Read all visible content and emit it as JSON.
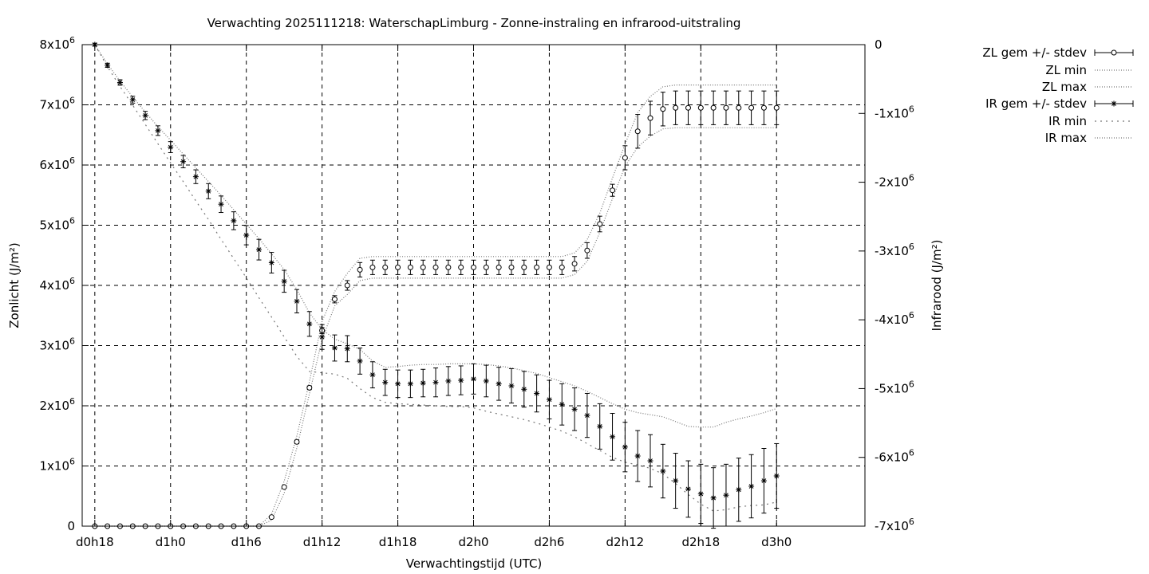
{
  "chart_data": {
    "type": "line",
    "title": "Verwachting 2025111218: WaterschapLimburg - Zonne-instraling en infrarood-uitstraling",
    "xlabel": "Verwachtingstijd (UTC)",
    "ylabel": "Zonlicht (J/m²)",
    "y2label": "Infrarood (J/m²)",
    "x_range_hours": [
      -1,
      61
    ],
    "ylim": [
      0,
      8000000
    ],
    "y2lim": [
      -7000000,
      0
    ],
    "grid": true,
    "legend_position": "top-right",
    "x_ticks": [
      {
        "label": "d0h18",
        "hours": 0
      },
      {
        "label": "d1h0",
        "hours": 6
      },
      {
        "label": "d1h6",
        "hours": 12
      },
      {
        "label": "d1h12",
        "hours": 18
      },
      {
        "label": "d1h18",
        "hours": 24
      },
      {
        "label": "d2h0",
        "hours": 30
      },
      {
        "label": "d2h6",
        "hours": 36
      },
      {
        "label": "d2h12",
        "hours": 42
      },
      {
        "label": "d2h18",
        "hours": 48
      },
      {
        "label": "d3h0",
        "hours": 54
      }
    ],
    "y_ticks": [
      {
        "label": "0",
        "value": 0
      },
      {
        "label": "1x10",
        "exp": "6",
        "value": 1000000
      },
      {
        "label": "2x10",
        "exp": "6",
        "value": 2000000
      },
      {
        "label": "3x10",
        "exp": "6",
        "value": 3000000
      },
      {
        "label": "4x10",
        "exp": "6",
        "value": 4000000
      },
      {
        "label": "5x10",
        "exp": "6",
        "value": 5000000
      },
      {
        "label": "6x10",
        "exp": "6",
        "value": 6000000
      },
      {
        "label": "7x10",
        "exp": "6",
        "value": 7000000
      },
      {
        "label": "8x10",
        "exp": "6",
        "value": 8000000
      }
    ],
    "y2_ticks": [
      {
        "label": "0",
        "value": 0
      },
      {
        "label": "-1x10",
        "exp": "6",
        "value": -1000000
      },
      {
        "label": "-2x10",
        "exp": "6",
        "value": -2000000
      },
      {
        "label": "-3x10",
        "exp": "6",
        "value": -3000000
      },
      {
        "label": "-4x10",
        "exp": "6",
        "value": -4000000
      },
      {
        "label": "-5x10",
        "exp": "6",
        "value": -5000000
      },
      {
        "label": "-6x10",
        "exp": "6",
        "value": -6000000
      },
      {
        "label": "-7x10",
        "exp": "6",
        "value": -7000000
      }
    ],
    "x_hours": [
      0,
      1,
      2,
      3,
      4,
      5,
      6,
      7,
      8,
      9,
      10,
      11,
      12,
      13,
      14,
      15,
      16,
      17,
      18,
      19,
      20,
      21,
      22,
      23,
      24,
      25,
      26,
      27,
      28,
      29,
      30,
      31,
      32,
      33,
      34,
      35,
      36,
      37,
      38,
      39,
      40,
      41,
      42,
      43,
      44,
      45,
      46,
      47,
      48,
      49,
      50,
      51,
      52,
      53,
      54
    ],
    "series": [
      {
        "name": "ZL gem +/- stdev",
        "axis": "y1",
        "marker": "circle",
        "values": [
          0,
          0,
          0,
          0,
          0,
          0,
          0,
          0,
          0,
          0,
          0,
          0,
          0,
          0,
          150000,
          650000,
          1400000,
          2300000,
          3250000,
          3770000,
          4000000,
          4260000,
          4300000,
          4300000,
          4300000,
          4300000,
          4300000,
          4300000,
          4300000,
          4300000,
          4300000,
          4300000,
          4300000,
          4300000,
          4300000,
          4300000,
          4300000,
          4300000,
          4360000,
          4580000,
          5020000,
          5580000,
          6120000,
          6560000,
          6780000,
          6930000,
          6950000,
          6950000,
          6950000,
          6950000,
          6950000,
          6950000,
          6950000,
          6950000,
          6950000
        ],
        "stdev": [
          0,
          0,
          0,
          0,
          0,
          0,
          0,
          0,
          0,
          0,
          0,
          0,
          0,
          0,
          20000,
          20000,
          30000,
          30000,
          50000,
          60000,
          80000,
          120000,
          120000,
          120000,
          120000,
          120000,
          120000,
          120000,
          120000,
          120000,
          120000,
          120000,
          120000,
          120000,
          120000,
          120000,
          120000,
          120000,
          120000,
          130000,
          130000,
          100000,
          200000,
          280000,
          280000,
          280000,
          280000,
          280000,
          280000,
          280000,
          280000,
          280000,
          280000,
          280000,
          280000
        ]
      },
      {
        "name": "ZL min",
        "axis": "y1",
        "style": "dotted",
        "values": [
          0,
          0,
          0,
          0,
          0,
          0,
          0,
          0,
          0,
          0,
          0,
          0,
          0,
          0,
          100000,
          550000,
          1300000,
          2200000,
          3100000,
          3660000,
          3850000,
          4080000,
          4120000,
          4120000,
          4120000,
          4120000,
          4120000,
          4120000,
          4120000,
          4120000,
          4120000,
          4120000,
          4120000,
          4120000,
          4120000,
          4120000,
          4120000,
          4120000,
          4180000,
          4400000,
          4880000,
          5440000,
          5980000,
          6300000,
          6480000,
          6600000,
          6620000,
          6620000,
          6620000,
          6620000,
          6620000,
          6620000,
          6620000,
          6620000,
          6620000
        ]
      },
      {
        "name": "ZL max",
        "axis": "y1",
        "style": "dotted",
        "values": [
          0,
          0,
          0,
          0,
          0,
          0,
          0,
          0,
          0,
          0,
          0,
          0,
          0,
          0,
          200000,
          750000,
          1500000,
          2400000,
          3400000,
          3900000,
          4200000,
          4450000,
          4480000,
          4480000,
          4480000,
          4480000,
          4480000,
          4480000,
          4480000,
          4480000,
          4480000,
          4480000,
          4480000,
          4480000,
          4480000,
          4480000,
          4480000,
          4480000,
          4540000,
          4760000,
          5200000,
          5780000,
          6350000,
          6870000,
          7140000,
          7300000,
          7330000,
          7330000,
          7330000,
          7330000,
          7330000,
          7330000,
          7330000,
          7330000,
          7330000
        ]
      },
      {
        "name": "IR gem +/- stdev",
        "axis": "y2",
        "marker": "star",
        "values": [
          0,
          -300000,
          -550000,
          -800000,
          -1030000,
          -1250000,
          -1490000,
          -1700000,
          -1920000,
          -2130000,
          -2320000,
          -2560000,
          -2770000,
          -2980000,
          -3170000,
          -3440000,
          -3730000,
          -4060000,
          -4250000,
          -4410000,
          -4420000,
          -4600000,
          -4800000,
          -4910000,
          -4930000,
          -4930000,
          -4920000,
          -4910000,
          -4890000,
          -4880000,
          -4860000,
          -4890000,
          -4930000,
          -4960000,
          -5010000,
          -5070000,
          -5160000,
          -5230000,
          -5300000,
          -5390000,
          -5550000,
          -5700000,
          -5850000,
          -5980000,
          -6050000,
          -6200000,
          -6340000,
          -6460000,
          -6530000,
          -6590000,
          -6550000,
          -6470000,
          -6420000,
          -6340000,
          -6270000
        ],
        "stdev": [
          20000,
          30000,
          40000,
          50000,
          60000,
          70000,
          80000,
          90000,
          100000,
          110000,
          120000,
          130000,
          140000,
          150000,
          150000,
          160000,
          170000,
          180000,
          180000,
          190000,
          190000,
          190000,
          190000,
          190000,
          200000,
          200000,
          200000,
          210000,
          210000,
          210000,
          220000,
          230000,
          240000,
          250000,
          260000,
          270000,
          280000,
          300000,
          310000,
          320000,
          330000,
          340000,
          360000,
          370000,
          380000,
          390000,
          400000,
          410000,
          430000,
          440000,
          450000,
          460000,
          460000,
          470000,
          470000
        ]
      },
      {
        "name": "IR min",
        "axis": "y2",
        "style": "dotted",
        "values": [
          0,
          -320000,
          -610000,
          -880000,
          -1160000,
          -1440000,
          -1720000,
          -1990000,
          -2270000,
          -2540000,
          -2830000,
          -3110000,
          -3390000,
          -3680000,
          -3960000,
          -4250000,
          -4530000,
          -4750000,
          -4770000,
          -4790000,
          -4850000,
          -5000000,
          -5130000,
          -5200000,
          -5220000,
          -5230000,
          -5240000,
          -5250000,
          -5260000,
          -5260000,
          -5280000,
          -5330000,
          -5370000,
          -5410000,
          -5450000,
          -5500000,
          -5560000,
          -5620000,
          -5700000,
          -5800000,
          -5900000,
          -6000000,
          -6070000,
          -6110000,
          -6160000,
          -6240000,
          -6380000,
          -6540000,
          -6680000,
          -6780000,
          -6760000,
          -6720000,
          -6700000,
          -6690000,
          -6650000
        ]
      },
      {
        "name": "IR max",
        "axis": "y2",
        "style": "dotted",
        "values": [
          0,
          -280000,
          -530000,
          -760000,
          -980000,
          -1190000,
          -1390000,
          -1590000,
          -1790000,
          -1990000,
          -2190000,
          -2400000,
          -2610000,
          -2820000,
          -3040000,
          -3270000,
          -3560000,
          -3900000,
          -4140000,
          -4280000,
          -4350000,
          -4430000,
          -4600000,
          -4690000,
          -4680000,
          -4660000,
          -4650000,
          -4650000,
          -4640000,
          -4640000,
          -4640000,
          -4650000,
          -4670000,
          -4700000,
          -4740000,
          -4780000,
          -4840000,
          -4900000,
          -4960000,
          -5040000,
          -5130000,
          -5220000,
          -5300000,
          -5350000,
          -5380000,
          -5410000,
          -5480000,
          -5550000,
          -5560000,
          -5560000,
          -5490000,
          -5440000,
          -5400000,
          -5350000,
          -5290000
        ]
      }
    ]
  }
}
